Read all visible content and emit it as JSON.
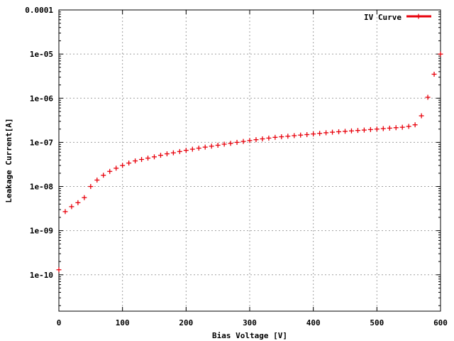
{
  "chart_data": {
    "type": "scatter",
    "title": "",
    "xlabel": "Bias Voltage [V]",
    "ylabel": "Leakage Current[A]",
    "xlim": [
      0,
      600
    ],
    "ylim": [
      1.5e-11,
      0.0001
    ],
    "yscale": "log",
    "grid": true,
    "legend": "top-right",
    "x_ticks": [
      "0",
      "100",
      "200",
      "300",
      "400",
      "500",
      "600"
    ],
    "x_tick_values": [
      0,
      100,
      200,
      300,
      400,
      500,
      600
    ],
    "y_ticks": [
      "1e-10",
      "1e-09",
      "1e-08",
      "1e-07",
      "1e-06",
      "1e-05",
      "0.0001"
    ],
    "y_tick_values": [
      1e-10,
      1e-09,
      1e-08,
      1e-07,
      1e-06,
      1e-05,
      0.0001
    ],
    "series": [
      {
        "name": "IV Curve",
        "color": "#e8000b",
        "marker": "plus",
        "points": [
          [
            0,
            1.3e-10
          ],
          [
            10,
            2.7e-09
          ],
          [
            20,
            3.5e-09
          ],
          [
            30,
            4.3e-09
          ],
          [
            40,
            5.6e-09
          ],
          [
            50,
            1e-08
          ],
          [
            60,
            1.4e-08
          ],
          [
            70,
            1.8e-08
          ],
          [
            80,
            2.2e-08
          ],
          [
            90,
            2.6e-08
          ],
          [
            100,
            3e-08
          ],
          [
            110,
            3.4e-08
          ],
          [
            120,
            3.8e-08
          ],
          [
            130,
            4.1e-08
          ],
          [
            140,
            4.4e-08
          ],
          [
            150,
            4.7e-08
          ],
          [
            160,
            5.1e-08
          ],
          [
            170,
            5.5e-08
          ],
          [
            180,
            5.8e-08
          ],
          [
            190,
            6.2e-08
          ],
          [
            200,
            6.6e-08
          ],
          [
            210,
            7e-08
          ],
          [
            220,
            7.4e-08
          ],
          [
            230,
            7.8e-08
          ],
          [
            240,
            8.2e-08
          ],
          [
            250,
            8.6e-08
          ],
          [
            260,
            9.1e-08
          ],
          [
            270,
            9.5e-08
          ],
          [
            280,
            1e-07
          ],
          [
            290,
            1.05e-07
          ],
          [
            300,
            1.1e-07
          ],
          [
            310,
            1.15e-07
          ],
          [
            320,
            1.2e-07
          ],
          [
            330,
            1.25e-07
          ],
          [
            340,
            1.3e-07
          ],
          [
            350,
            1.34e-07
          ],
          [
            360,
            1.38e-07
          ],
          [
            370,
            1.42e-07
          ],
          [
            380,
            1.46e-07
          ],
          [
            390,
            1.5e-07
          ],
          [
            400,
            1.55e-07
          ],
          [
            410,
            1.6e-07
          ],
          [
            420,
            1.65e-07
          ],
          [
            430,
            1.7e-07
          ],
          [
            440,
            1.74e-07
          ],
          [
            450,
            1.78e-07
          ],
          [
            460,
            1.82e-07
          ],
          [
            470,
            1.86e-07
          ],
          [
            480,
            1.9e-07
          ],
          [
            490,
            1.95e-07
          ],
          [
            500,
            2e-07
          ],
          [
            510,
            2.05e-07
          ],
          [
            520,
            2.1e-07
          ],
          [
            530,
            2.15e-07
          ],
          [
            540,
            2.2e-07
          ],
          [
            550,
            2.3e-07
          ],
          [
            560,
            2.5e-07
          ],
          [
            570,
            4e-07
          ],
          [
            580,
            1.05e-06
          ],
          [
            590,
            3.5e-06
          ],
          [
            600,
            1e-05
          ]
        ]
      }
    ]
  }
}
